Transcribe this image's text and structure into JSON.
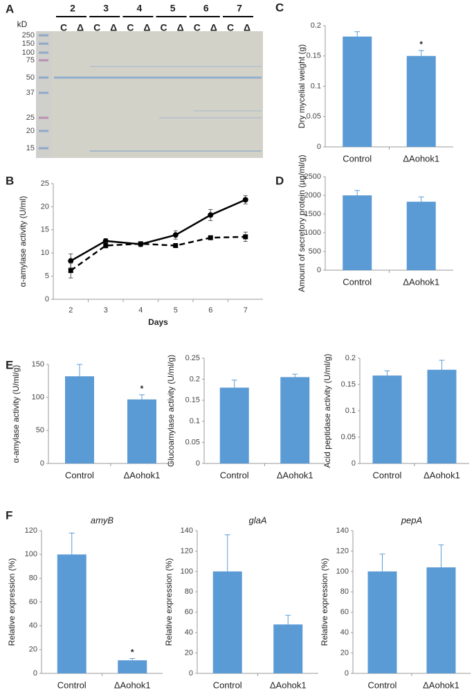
{
  "gel": {
    "panel": "A",
    "unit": "kD",
    "lanes": [
      "2",
      "3",
      "4",
      "5",
      "6",
      "7"
    ],
    "lane_labels": [
      "C",
      "Δ"
    ],
    "markers": [
      250,
      150,
      100,
      75,
      50,
      37,
      25,
      20,
      15
    ]
  },
  "chart_data": [
    {
      "type": "line",
      "panel": "B",
      "x_label": "Days",
      "y_label": "α-amylase activity (U/ml)",
      "categories": [
        "2",
        "3",
        "4",
        "5",
        "6",
        "7"
      ],
      "ylim": [
        0,
        25
      ],
      "yticks": [
        0,
        5,
        10,
        15,
        20,
        25
      ],
      "series": [
        {
          "color": "#000000",
          "marker": "circle",
          "dash": false,
          "values": [
            8.3,
            12.6,
            11.9,
            13.9,
            18.2,
            21.5
          ],
          "errors": [
            1.5,
            0.5,
            0.5,
            0.9,
            1.2,
            0.9
          ]
        },
        {
          "color": "#000000",
          "marker": "square",
          "dash": true,
          "values": [
            6.2,
            11.6,
            12.0,
            11.6,
            13.3,
            13.5
          ],
          "errors": [
            1.6,
            0.5,
            0.3,
            0.3,
            0.4,
            1.0
          ]
        }
      ]
    },
    {
      "type": "bar",
      "panel": "C",
      "y_label": "Dry mycelial weight (g)",
      "categories": [
        "Control",
        "ΔAohok1"
      ],
      "color": "#5b9bd5",
      "values": [
        0.182,
        0.15
      ],
      "errors": [
        0.008,
        0.009
      ],
      "significance": [
        null,
        "*"
      ],
      "ylim": [
        0,
        0.2
      ],
      "yticks": [
        0,
        0.05,
        0.1,
        0.15,
        0.2
      ]
    },
    {
      "type": "bar",
      "panel": "D",
      "y_label": "Amount of secretory protein (µg/ml/g)",
      "categories": [
        "Control",
        "ΔAohok1"
      ],
      "color": "#5b9bd5",
      "values": [
        2000,
        1830
      ],
      "errors": [
        130,
        130
      ],
      "significance": [
        null,
        null
      ],
      "ylim": [
        0,
        2500
      ],
      "yticks": [
        0,
        500,
        1000,
        1500,
        2000,
        2500
      ]
    },
    {
      "type": "bar",
      "panel": "E",
      "y_label": "α-amylase activity (U/ml/g)",
      "categories": [
        "Control",
        "ΔAohok1"
      ],
      "color": "#5b9bd5",
      "values": [
        132,
        97
      ],
      "errors": [
        18,
        7
      ],
      "significance": [
        null,
        "*"
      ],
      "ylim": [
        0,
        150
      ],
      "yticks": [
        0,
        50,
        100,
        150
      ]
    },
    {
      "type": "bar",
      "y_label": "Glucoamylase activity (U/ml/g)",
      "categories": [
        "Control",
        "ΔAohok1"
      ],
      "color": "#5b9bd5",
      "values": [
        0.18,
        0.205
      ],
      "errors": [
        0.018,
        0.007
      ],
      "significance": [
        null,
        null
      ],
      "ylim": [
        0,
        0.25
      ],
      "yticks": [
        0,
        0.05,
        0.1,
        0.15,
        0.2,
        0.25
      ]
    },
    {
      "type": "bar",
      "y_label": "Acid peptidase activity (U/ml/g)",
      "categories": [
        "Control",
        "ΔAohok1"
      ],
      "color": "#5b9bd5",
      "values": [
        0.167,
        0.178
      ],
      "errors": [
        0.009,
        0.018
      ],
      "significance": [
        null,
        null
      ],
      "ylim": [
        0,
        0.2
      ],
      "yticks": [
        0,
        0.05,
        0.1,
        0.15,
        0.2
      ]
    },
    {
      "type": "bar",
      "panel": "F",
      "title": "amyB",
      "y_label": "Relative expression (%)",
      "categories": [
        "Control",
        "ΔAohok1"
      ],
      "color": "#5b9bd5",
      "values": [
        100,
        11
      ],
      "errors": [
        18,
        1.5
      ],
      "significance": [
        null,
        "*"
      ],
      "ylim": [
        0,
        120
      ],
      "yticks": [
        0,
        20,
        40,
        60,
        80,
        100,
        120
      ]
    },
    {
      "type": "bar",
      "title": "glaA",
      "y_label": "Relative expression (%)",
      "categories": [
        "Control",
        "ΔAohok1"
      ],
      "color": "#5b9bd5",
      "values": [
        100,
        48
      ],
      "errors": [
        36,
        9
      ],
      "significance": [
        null,
        null
      ],
      "ylim": [
        0,
        140
      ],
      "yticks": [
        0,
        20,
        40,
        60,
        80,
        100,
        120,
        140
      ]
    },
    {
      "type": "bar",
      "title": "pepA",
      "y_label": "Relative expression (%)",
      "categories": [
        "Control",
        "ΔAohok1"
      ],
      "color": "#5b9bd5",
      "values": [
        100,
        104
      ],
      "errors": [
        17,
        22
      ],
      "significance": [
        null,
        null
      ],
      "ylim": [
        0,
        140
      ],
      "yticks": [
        0,
        20,
        40,
        60,
        80,
        100,
        120,
        140
      ]
    }
  ]
}
